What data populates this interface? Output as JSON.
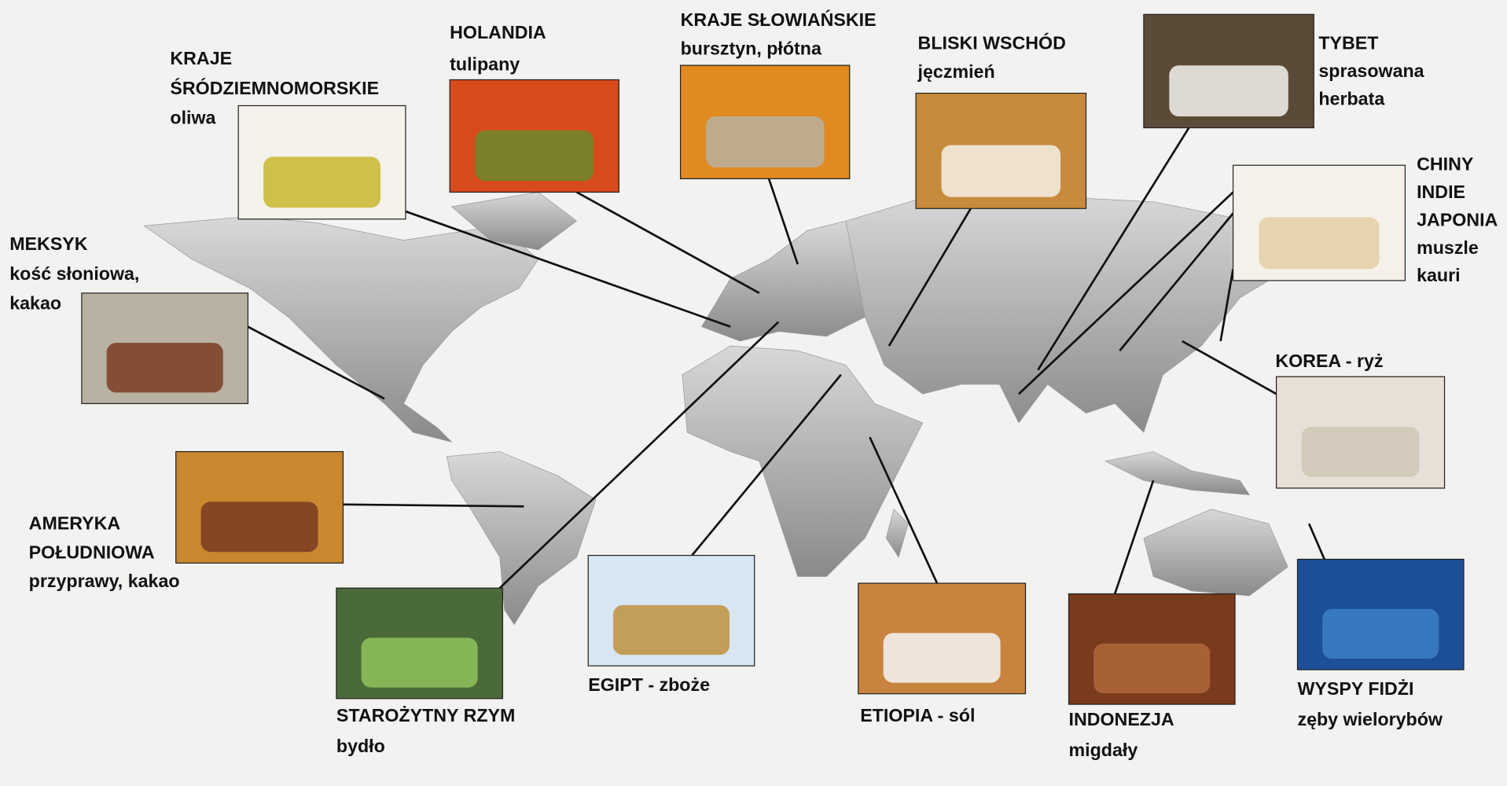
{
  "items": [
    {
      "lines": [
        "MEKSYK",
        "kość słoniowa,",
        "kakao"
      ]
    },
    {
      "lines": [
        "KRAJE",
        "ŚRÓDZIEMNOMORSKIE",
        "oliwa"
      ]
    },
    {
      "lines": [
        "HOLANDIA",
        "tulipany"
      ]
    },
    {
      "lines": [
        "KRAJE SŁOWIAŃSKIE",
        "bursztyn, płótna"
      ]
    },
    {
      "lines": [
        "BLISKI WSCHÓD",
        "jęczmień"
      ]
    },
    {
      "lines": [
        "TYBET",
        "sprasowana",
        "herbata"
      ]
    },
    {
      "lines": [
        "CHINY",
        "INDIE",
        "JAPONIA",
        "muszle",
        "kauri"
      ]
    },
    {
      "lines": [
        "KOREA - ryż"
      ]
    },
    {
      "lines": [
        "AMERYKA",
        "POŁUDNIOWA",
        "przyprawy, kakao"
      ]
    },
    {
      "lines": [
        "STAROŻYTNY RZYM",
        "bydło"
      ]
    },
    {
      "lines": [
        "EGIPT - zboże"
      ]
    },
    {
      "lines": [
        "ETIOPIA - sól"
      ]
    },
    {
      "lines": [
        "INDONEZJA",
        "migdały"
      ]
    },
    {
      "lines": [
        "WYSPY FIDŻI",
        "zęby wielorybów"
      ]
    }
  ]
}
